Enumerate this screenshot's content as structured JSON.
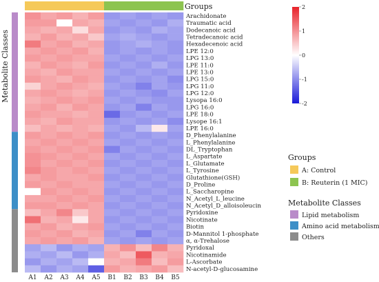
{
  "chart_data": {
    "type": "heatmap",
    "columns": [
      "A1",
      "A2",
      "A3",
      "A4",
      "A5",
      "B1",
      "B2",
      "B3",
      "B4",
      "B5"
    ],
    "rows": [
      "Arachidonate",
      "Traumatic acid",
      "Dodecanoic acid",
      "Tetradecanoic acid",
      "Hexadecenoic acid",
      "LPE 12:0",
      "LPG 13:0",
      "LPE 11:0",
      "LPE 13:0",
      "LPG 15:0",
      "LPG 11:0",
      "LPG 12:0",
      "Lysopa 16:0",
      "LPG 16:0",
      "LPE 18:0",
      "Lysope 16:1",
      "LPE 16:0",
      "D_Phenylalanine",
      "L_Phenylalanine",
      "DL_Tryptophan",
      "L_Aspartate",
      "L_Glutamate",
      "L_Tyrosine",
      "Glutathione(GSH)",
      "D_Proline",
      "L_Saccharopine",
      "N_Acetyl_L_leucine",
      "N_Acetyl_D_alloisoleucin",
      "Pyridoxine",
      "Nicotinate",
      "Biotin",
      "D-Mannitol 1-phosphate",
      "α, α-Trehalose",
      "Pyridoxal",
      "Nicotinamide",
      "L-Ascorbate",
      "N-acetyl-D-glucosamine"
    ],
    "values": [
      [
        1.0,
        0.8,
        0.9,
        0.7,
        0.9,
        -0.9,
        -0.8,
        -0.9,
        -0.8,
        -0.9
      ],
      [
        0.9,
        0.9,
        0.0,
        0.8,
        0.7,
        -0.8,
        -0.9,
        -0.8,
        -0.9,
        -0.7
      ],
      [
        0.8,
        0.7,
        0.8,
        0.3,
        0.8,
        -0.9,
        -0.8,
        -0.9,
        -0.7,
        -0.8
      ],
      [
        0.7,
        0.9,
        0.7,
        0.8,
        0.5,
        -0.8,
        -0.7,
        -0.8,
        -0.9,
        -0.8
      ],
      [
        1.2,
        0.8,
        0.9,
        0.7,
        0.8,
        -0.9,
        -0.8,
        -0.7,
        -0.8,
        -0.9
      ],
      [
        0.8,
        0.9,
        0.8,
        0.9,
        0.7,
        -0.9,
        -0.8,
        -0.9,
        -0.8,
        -0.9
      ],
      [
        0.9,
        0.8,
        0.9,
        0.8,
        0.8,
        -0.8,
        -0.9,
        -0.8,
        -0.9,
        -0.8
      ],
      [
        0.7,
        0.9,
        0.8,
        0.7,
        0.9,
        -0.9,
        -0.8,
        -0.9,
        -0.7,
        -0.9
      ],
      [
        0.8,
        0.7,
        0.9,
        0.8,
        0.8,
        -0.8,
        -0.9,
        -0.8,
        -0.9,
        -0.8
      ],
      [
        0.9,
        0.8,
        0.7,
        0.9,
        0.8,
        -0.9,
        -0.8,
        -0.9,
        -0.8,
        -1.0
      ],
      [
        0.4,
        0.8,
        0.9,
        0.8,
        0.7,
        -0.8,
        -0.9,
        -1.1,
        -0.8,
        -0.9
      ],
      [
        0.8,
        0.9,
        0.8,
        0.7,
        0.8,
        -0.9,
        -0.8,
        -0.9,
        -1.0,
        -0.8
      ],
      [
        0.7,
        0.8,
        0.9,
        0.8,
        0.9,
        -0.8,
        -0.9,
        -0.8,
        -0.9,
        -0.9
      ],
      [
        0.8,
        0.9,
        0.7,
        0.9,
        0.8,
        -0.9,
        -0.8,
        -1.1,
        -0.8,
        -0.9
      ],
      [
        0.9,
        0.8,
        0.8,
        0.7,
        0.8,
        -1.3,
        -0.9,
        -0.8,
        -0.9,
        -0.8
      ],
      [
        0.8,
        0.7,
        0.9,
        0.8,
        0.8,
        -0.9,
        -0.8,
        -0.9,
        -0.8,
        -1.0
      ],
      [
        0.6,
        0.8,
        0.7,
        0.8,
        0.7,
        -0.8,
        -0.9,
        -0.6,
        0.2,
        -0.8
      ],
      [
        0.9,
        0.8,
        0.9,
        0.8,
        0.9,
        -0.9,
        -0.8,
        -0.9,
        -0.8,
        -0.9
      ],
      [
        0.8,
        0.9,
        0.8,
        0.9,
        0.8,
        -0.8,
        -0.9,
        -0.8,
        -0.9,
        -0.8
      ],
      [
        0.9,
        0.8,
        0.9,
        0.8,
        0.9,
        -1.1,
        -0.8,
        -0.9,
        -0.8,
        -0.9
      ],
      [
        1.0,
        0.9,
        0.8,
        0.9,
        0.8,
        -0.8,
        -0.9,
        -0.8,
        -0.9,
        -0.8
      ],
      [
        1.0,
        0.8,
        0.9,
        0.8,
        0.9,
        -0.9,
        -0.8,
        -0.9,
        -0.8,
        -0.9
      ],
      [
        1.1,
        0.9,
        0.8,
        0.9,
        0.8,
        -0.8,
        -0.9,
        -0.8,
        -0.9,
        -0.8
      ],
      [
        0.8,
        0.9,
        0.8,
        0.8,
        0.9,
        -0.9,
        -0.8,
        -0.9,
        -0.8,
        -0.9
      ],
      [
        0.9,
        0.8,
        0.9,
        0.8,
        0.8,
        -0.8,
        -0.9,
        -0.8,
        -0.9,
        -0.8
      ],
      [
        0.0,
        0.9,
        0.8,
        0.9,
        0.8,
        -0.9,
        -0.8,
        -0.9,
        -0.8,
        -0.9
      ],
      [
        0.8,
        0.8,
        0.9,
        0.8,
        0.9,
        -0.8,
        -0.9,
        -0.8,
        -0.9,
        -0.8
      ],
      [
        0.9,
        0.9,
        0.8,
        0.9,
        0.8,
        -0.9,
        -0.8,
        -0.9,
        -0.8,
        -0.9
      ],
      [
        0.6,
        0.8,
        1.1,
        0.5,
        0.8,
        -0.8,
        -0.9,
        -0.8,
        -0.9,
        -0.8
      ],
      [
        1.3,
        0.7,
        0.8,
        0.2,
        0.8,
        -0.9,
        -0.8,
        -0.9,
        -0.8,
        -0.9
      ],
      [
        0.8,
        0.9,
        0.7,
        0.8,
        0.9,
        -0.8,
        -0.9,
        -0.8,
        -0.9,
        -0.8
      ],
      [
        0.9,
        0.8,
        0.9,
        0.7,
        0.8,
        -0.9,
        -0.8,
        -1.1,
        -0.8,
        -0.9
      ],
      [
        0.8,
        0.9,
        0.8,
        0.9,
        0.7,
        -0.8,
        -0.9,
        -0.8,
        -0.9,
        -0.8
      ],
      [
        -0.8,
        -0.6,
        -0.9,
        -0.7,
        -0.8,
        0.7,
        1.0,
        0.6,
        1.1,
        0.7
      ],
      [
        -0.7,
        -0.8,
        -0.6,
        -0.9,
        -0.7,
        0.8,
        0.6,
        1.5,
        0.7,
        0.8
      ],
      [
        -0.9,
        -0.7,
        -0.8,
        -0.6,
        0.0,
        0.7,
        0.8,
        1.2,
        0.6,
        0.9
      ],
      [
        -0.6,
        -0.9,
        -0.7,
        -0.8,
        -1.4,
        0.9,
        0.7,
        0.8,
        0.9,
        0.6
      ]
    ],
    "groups": {
      "title": "Groups",
      "column_groups": [
        "A",
        "A",
        "A",
        "A",
        "A",
        "B",
        "B",
        "B",
        "B",
        "B"
      ],
      "entries": [
        {
          "key": "A",
          "label": "A: Control",
          "color": "#f5c95a"
        },
        {
          "key": "B",
          "label": "B: Reuterin (1 MIC)",
          "color": "#8dc450"
        }
      ]
    },
    "row_classes": {
      "title": "Metabolite Classes",
      "entries": [
        {
          "label": "Lipid metabolism",
          "color": "#b98bc9",
          "count": 17
        },
        {
          "label": "Amino acid metabolism",
          "color": "#3d8fc7",
          "count": 11
        },
        {
          "label": "Others",
          "color": "#8c8c8c",
          "count": 9
        }
      ]
    },
    "colorscale": {
      "min": -2,
      "max": 2,
      "ticks": [
        2,
        1,
        0,
        -1,
        -2
      ],
      "low_color": "#1a1ad8",
      "mid_color": "#ffffff",
      "high_color": "#e8232a"
    },
    "y_title": "Metabolite Classes",
    "top_title": "Groups"
  }
}
